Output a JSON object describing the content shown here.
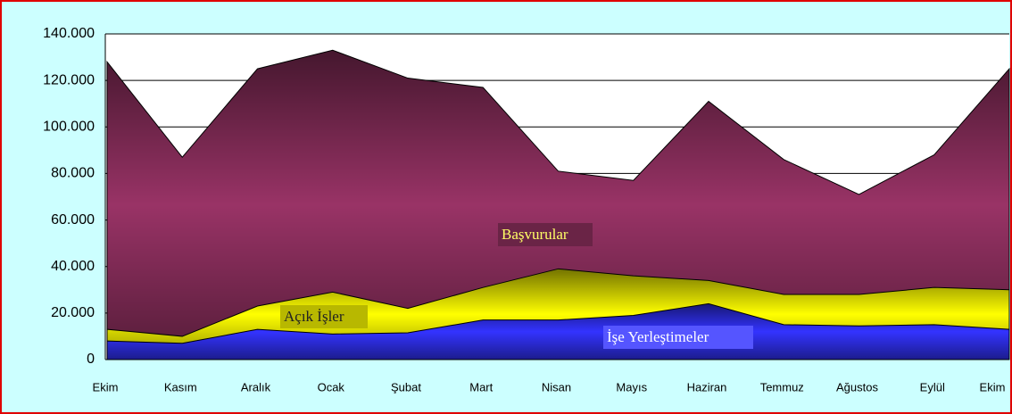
{
  "chart_data": {
    "type": "area",
    "categories": [
      "Ekim",
      "Kasım",
      "Aralık",
      "Ocak",
      "Şubat",
      "Mart",
      "Nisan",
      "Mayıs",
      "Haziran",
      "Temmuz",
      "Ağustos",
      "Eylül",
      "Ekim"
    ],
    "series": [
      {
        "name": "Başvurular",
        "color": "#993366",
        "values": [
          128000,
          87000,
          125000,
          133000,
          121000,
          117000,
          81000,
          77000,
          111000,
          86000,
          71000,
          88000,
          125000
        ]
      },
      {
        "name": "Açık İşler",
        "color": "#ffff00",
        "values": [
          13000,
          10000,
          23000,
          29000,
          22000,
          31000,
          39000,
          36000,
          34000,
          28000,
          28000,
          31000,
          30000
        ]
      },
      {
        "name": "İşe Yerleştimeler",
        "color": "#3333ff",
        "values": [
          8000,
          7000,
          13000,
          11000,
          11500,
          17000,
          17000,
          19000,
          24000,
          15000,
          14500,
          15000,
          13000
        ]
      }
    ],
    "ylim": [
      0,
      140000
    ],
    "yticks": [
      0,
      {
        "value": 20000,
        "label": "20.000"
      },
      {
        "value": 40000,
        "label": "40.000"
      },
      {
        "value": 60000,
        "label": "60.000"
      },
      {
        "value": 80000,
        "label": "80.000"
      },
      {
        "value": 100000,
        "label": "100.000"
      },
      {
        "value": 120000,
        "label": "120.000"
      },
      {
        "value": 140000,
        "label": "140.000"
      }
    ],
    "grid": true
  }
}
